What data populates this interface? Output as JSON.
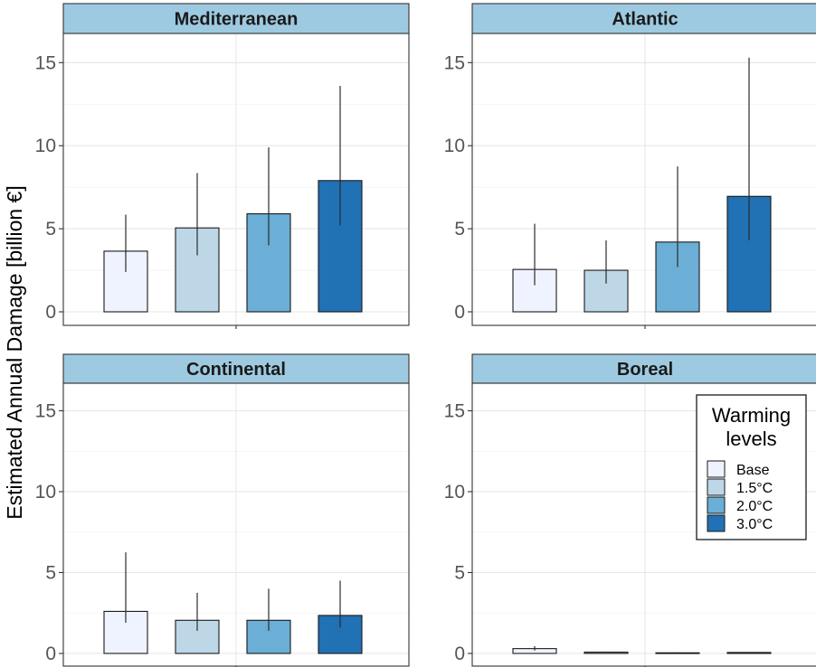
{
  "chart_data": {
    "type": "bar",
    "ylabel": "Estimated Annual Damage [billion €]",
    "ylim": [
      0,
      16.8
    ],
    "yticks": [
      0,
      5,
      10,
      15
    ],
    "grid": true,
    "legend": {
      "title_lines": [
        "Warming",
        "levels"
      ],
      "placement": "inside bottom-right panel, top-right",
      "entries": [
        "Base",
        "1.5°C",
        "2.0°C",
        "3.0°C"
      ]
    },
    "colors": [
      "#eff3ff",
      "#bdd7e7",
      "#6baed6",
      "#2171b5"
    ],
    "strip_color": "#9ecae1",
    "panels": [
      {
        "title": "Mediterranean",
        "values": [
          3.65,
          5.05,
          5.9,
          7.9
        ],
        "err_low": [
          2.4,
          3.4,
          4.0,
          5.2
        ],
        "err_high": [
          5.85,
          8.35,
          9.9,
          13.6
        ]
      },
      {
        "title": "Atlantic",
        "values": [
          2.55,
          2.5,
          4.2,
          6.95
        ],
        "err_low": [
          1.6,
          1.7,
          2.7,
          4.3
        ],
        "err_high": [
          5.3,
          4.3,
          8.75,
          15.3
        ]
      },
      {
        "title": "Continental",
        "values": [
          2.6,
          2.05,
          2.05,
          2.35
        ],
        "err_low": [
          1.9,
          1.4,
          1.4,
          1.6
        ],
        "err_high": [
          6.25,
          3.75,
          4.0,
          4.5
        ]
      },
      {
        "title": "Boreal",
        "values": [
          0.3,
          0.08,
          0.04,
          0.06
        ],
        "err_low": [
          0.18,
          0.05,
          0.02,
          0.03
        ],
        "err_high": [
          0.45,
          0.12,
          0.06,
          0.09
        ]
      }
    ]
  }
}
